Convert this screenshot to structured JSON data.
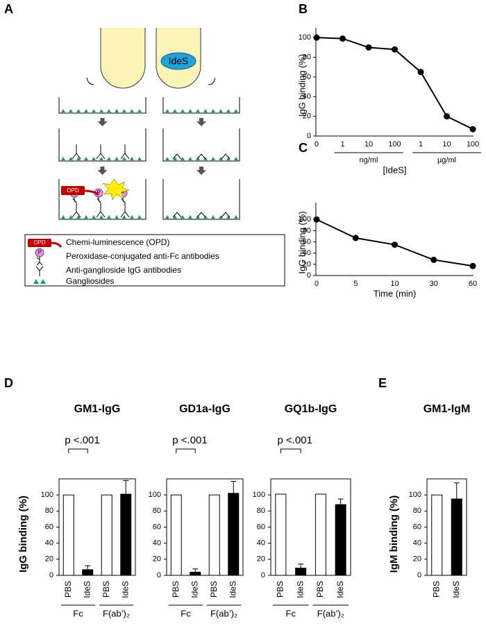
{
  "panel_labels": [
    "A",
    "B",
    "C",
    "D",
    "E"
  ],
  "diagram": {
    "enzyme": "IdeS",
    "substrate": "OPD",
    "enzyme_conjugate": "P",
    "legend": [
      "Chemi-luminescence (OPD)",
      "Peroxidase-conjugated anti-Fc antibodies",
      "Anti-ganglioside IgG antibodies",
      "Gangliosides"
    ]
  },
  "chart_data": [
    {
      "type": "line",
      "ylabel": "IgG binding (%)",
      "xlabel": "[IdeS]",
      "categories": [
        "0",
        "1",
        "10",
        "100",
        "1",
        "10",
        "100"
      ],
      "category_groups": [
        {
          "label": "ng/ml",
          "span": [
            1,
            3
          ]
        },
        {
          "label": "µg/ml",
          "span": [
            4,
            6
          ]
        }
      ],
      "values": [
        100,
        99,
        90,
        88,
        65,
        20,
        7
      ],
      "color": "#000000",
      "ylim": [
        0,
        110
      ],
      "yticks": [
        0,
        20,
        40,
        60,
        80,
        100
      ]
    },
    {
      "type": "line",
      "ylabel": "IgG binding (%)",
      "xlabel": "Time (min)",
      "categories": [
        "0",
        "5",
        "10",
        "30",
        "60"
      ],
      "values": [
        100,
        67,
        55,
        28,
        17
      ],
      "color": "#000000",
      "ylim": [
        0,
        130
      ],
      "yticks": [
        0,
        20,
        40,
        60,
        80,
        100
      ]
    },
    {
      "type": "bar",
      "title": "GM1-IgG",
      "ylabel": "IgG binding (%)",
      "categories": [
        "PBS",
        "IdeS",
        "PBS",
        "IdeS"
      ],
      "category_groups": [
        {
          "label": "Fc",
          "span": [
            0,
            1
          ]
        },
        {
          "label": "F(ab’)₂",
          "span": [
            2,
            3
          ]
        }
      ],
      "values": [
        100,
        7,
        100,
        101
      ],
      "errors": [
        null,
        5,
        null,
        17
      ],
      "colors": [
        "#ffffff",
        "#000000",
        "#ffffff",
        "#000000"
      ],
      "annotation": {
        "text": "p <.001",
        "span": [
          0,
          1
        ]
      },
      "ylim": [
        0,
        120
      ],
      "yticks": [
        0,
        20,
        40,
        60,
        80,
        100
      ]
    },
    {
      "type": "bar",
      "title": "GD1a-IgG",
      "categories": [
        "PBS",
        "IdeS",
        "PBS",
        "IdeS"
      ],
      "category_groups": [
        {
          "label": "Fc",
          "span": [
            0,
            1
          ]
        },
        {
          "label": "F(ab’)₂",
          "span": [
            2,
            3
          ]
        }
      ],
      "values": [
        100,
        4,
        100,
        102
      ],
      "errors": [
        null,
        4,
        null,
        15
      ],
      "colors": [
        "#ffffff",
        "#000000",
        "#ffffff",
        "#000000"
      ],
      "annotation": {
        "text": "p <.001",
        "span": [
          0,
          1
        ]
      },
      "ylim": [
        0,
        120
      ],
      "yticks": [
        0,
        20,
        40,
        60,
        80,
        100
      ]
    },
    {
      "type": "bar",
      "title": "GQ1b-IgG",
      "categories": [
        "PBS",
        "IdeS",
        "PBS",
        "IdeS"
      ],
      "category_groups": [
        {
          "label": "Fc",
          "span": [
            0,
            1
          ]
        },
        {
          "label": "F(ab’)₂",
          "span": [
            2,
            3
          ]
        }
      ],
      "values": [
        101,
        9,
        101,
        88
      ],
      "errors": [
        null,
        5,
        null,
        7
      ],
      "colors": [
        "#ffffff",
        "#000000",
        "#ffffff",
        "#000000"
      ],
      "annotation": {
        "text": "p <.001",
        "span": [
          0,
          1
        ]
      },
      "ylim": [
        0,
        120
      ],
      "yticks": [
        0,
        20,
        40,
        60,
        80,
        100
      ]
    },
    {
      "type": "bar",
      "title": "GM1-IgM",
      "ylabel": "IgM binding (%)",
      "categories": [
        "PBS",
        "IdeS"
      ],
      "values": [
        100,
        95
      ],
      "errors": [
        null,
        20
      ],
      "colors": [
        "#ffffff",
        "#000000"
      ],
      "ylim": [
        0,
        120
      ],
      "yticks": [
        0,
        20,
        40,
        60,
        80,
        100
      ]
    }
  ]
}
